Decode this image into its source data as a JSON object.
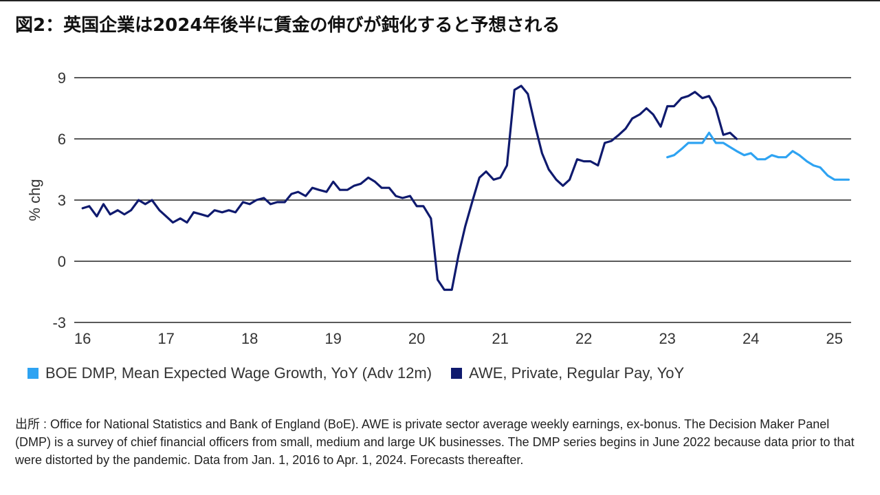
{
  "title": "図2：英国企業は2024年後半に賃金の伸びが鈍化すると予想される",
  "source_note": "出所 : Office for National Statistics and Bank of England (BoE). AWE is private sector average weekly earnings, ex-bonus. The Decision Maker Panel (DMP) is a survey of chief financial officers from small, medium and large UK businesses. The DMP series begins in June 2022 because data prior to that were distorted by the pandemic. Data from Jan. 1, 2016 to Apr. 1, 2024. Forecasts thereafter.",
  "chart_data": {
    "type": "line",
    "ylabel": "% chg",
    "ylim": [
      -3,
      9
    ],
    "yticks": [
      -3,
      0,
      3,
      6,
      9
    ],
    "xlim": [
      2015.9,
      2025.2
    ],
    "xticks": [
      2016,
      2017,
      2018,
      2019,
      2020,
      2021,
      2022,
      2023,
      2024,
      2025
    ],
    "xtick_labels": [
      "16",
      "17",
      "18",
      "19",
      "20",
      "21",
      "22",
      "23",
      "24",
      "25"
    ],
    "grid": "horizontal",
    "legend_position": "bottom",
    "series": [
      {
        "name": "AWE, Private, Regular Pay, YoY",
        "color": "#0f1a6e",
        "x": [
          2016.0,
          2016.08,
          2016.17,
          2016.25,
          2016.33,
          2016.42,
          2016.5,
          2016.58,
          2016.67,
          2016.75,
          2016.83,
          2016.92,
          2017.0,
          2017.08,
          2017.17,
          2017.25,
          2017.33,
          2017.42,
          2017.5,
          2017.58,
          2017.67,
          2017.75,
          2017.83,
          2017.92,
          2018.0,
          2018.08,
          2018.17,
          2018.25,
          2018.33,
          2018.42,
          2018.5,
          2018.58,
          2018.67,
          2018.75,
          2018.83,
          2018.92,
          2019.0,
          2019.08,
          2019.17,
          2019.25,
          2019.33,
          2019.42,
          2019.5,
          2019.58,
          2019.67,
          2019.75,
          2019.83,
          2019.92,
          2020.0,
          2020.08,
          2020.17,
          2020.25,
          2020.33,
          2020.42,
          2020.5,
          2020.58,
          2020.67,
          2020.75,
          2020.83,
          2020.92,
          2021.0,
          2021.08,
          2021.17,
          2021.25,
          2021.33,
          2021.42,
          2021.5,
          2021.58,
          2021.67,
          2021.75,
          2021.83,
          2021.92,
          2022.0,
          2022.08,
          2022.17,
          2022.25,
          2022.33,
          2022.42,
          2022.5,
          2022.58,
          2022.67,
          2022.75,
          2022.83,
          2022.92,
          2023.0,
          2023.08,
          2023.17,
          2023.25,
          2023.33,
          2023.42,
          2023.5,
          2023.58,
          2023.67,
          2023.75,
          2023.83
        ],
        "values": [
          2.6,
          2.7,
          2.2,
          2.8,
          2.3,
          2.5,
          2.3,
          2.5,
          3.0,
          2.8,
          3.0,
          2.5,
          2.2,
          1.9,
          2.1,
          1.9,
          2.4,
          2.3,
          2.2,
          2.5,
          2.4,
          2.5,
          2.4,
          2.9,
          2.8,
          3.0,
          3.1,
          2.8,
          2.9,
          2.9,
          3.3,
          3.4,
          3.2,
          3.6,
          3.5,
          3.4,
          3.9,
          3.5,
          3.5,
          3.7,
          3.8,
          4.1,
          3.9,
          3.6,
          3.6,
          3.2,
          3.1,
          3.2,
          2.7,
          2.7,
          2.1,
          -0.9,
          -1.4,
          -1.4,
          0.3,
          1.7,
          3.0,
          4.1,
          4.4,
          4.0,
          4.1,
          4.7,
          8.4,
          8.6,
          8.2,
          6.6,
          5.3,
          4.5,
          4.0,
          3.7,
          4.0,
          5.0,
          4.9,
          4.9,
          4.7,
          5.8,
          5.9,
          6.2,
          6.5,
          7.0,
          7.2,
          7.5,
          7.2,
          6.6,
          7.6,
          7.6,
          8.0,
          8.1,
          8.3,
          8.0,
          8.1,
          7.5,
          6.2,
          6.3,
          6.0
        ]
      },
      {
        "name": "BOE DMP, Mean Expected Wage Growth, YoY (Adv 12m)",
        "color": "#2ea3f2",
        "x": [
          2023.0,
          2023.08,
          2023.17,
          2023.25,
          2023.33,
          2023.42,
          2023.5,
          2023.58,
          2023.67,
          2023.75,
          2023.83,
          2023.92,
          2024.0,
          2024.08,
          2024.17,
          2024.25,
          2024.33,
          2024.42,
          2024.5,
          2024.58,
          2024.67,
          2024.75,
          2024.83,
          2024.92,
          2025.0,
          2025.08,
          2025.17
        ],
        "values": [
          5.1,
          5.2,
          5.5,
          5.8,
          5.8,
          5.8,
          6.3,
          5.8,
          5.8,
          5.6,
          5.4,
          5.2,
          5.3,
          5.0,
          5.0,
          5.2,
          5.1,
          5.1,
          5.4,
          5.2,
          4.9,
          4.7,
          4.6,
          4.2,
          4.0,
          4.0,
          4.0
        ]
      }
    ]
  }
}
